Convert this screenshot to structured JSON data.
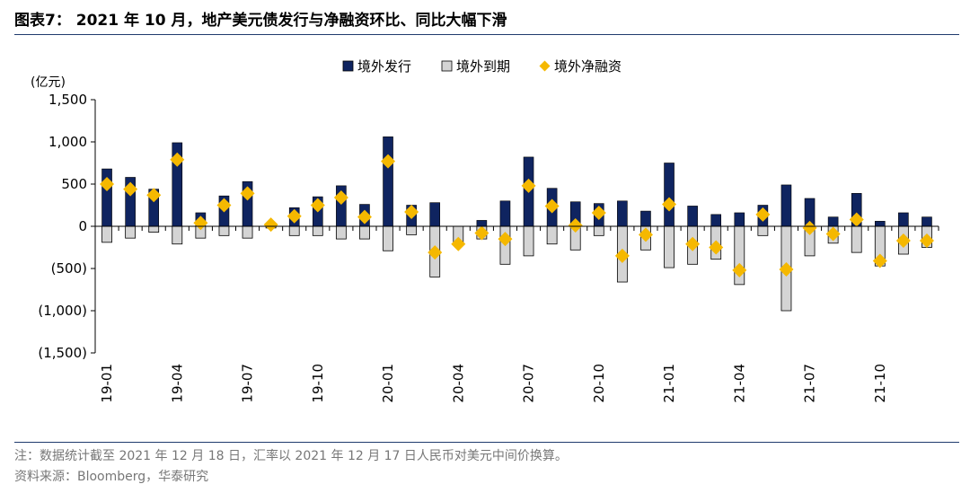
{
  "header": {
    "title": "图表7： 2021 年 10 月，地产美元债发行与净融资环比、同比大幅下滑"
  },
  "footer": {
    "note": "注：数据统计截至 2021 年 12 月 18 日，汇率以 2021 年 12 月 17 日人民币对美元中间价换算。",
    "source": "资料来源：Bloomberg，华泰研究"
  },
  "chart_data": {
    "type": "bar",
    "unit_label": "(亿元)",
    "ylim": [
      -1500,
      1500
    ],
    "y_ticks": [
      1500,
      1000,
      500,
      0,
      -500,
      -1000,
      -1500
    ],
    "y_tick_labels": [
      "1,500",
      "1,000",
      "500",
      "0",
      "(500)",
      "(1,000)",
      "(1,500)"
    ],
    "x_tick_labels": [
      "19-01",
      "19-04",
      "19-07",
      "19-10",
      "20-01",
      "20-04",
      "20-07",
      "20-10",
      "21-01",
      "21-04",
      "21-07",
      "21-10"
    ],
    "legend_position": "top-center",
    "colors": {
      "issue": "#0f2460",
      "maturity": "#d4d4d4",
      "net": "#f5b800"
    },
    "categories": [
      "19-01",
      "19-02",
      "19-03",
      "19-04",
      "19-05",
      "19-06",
      "19-07",
      "19-08",
      "19-09",
      "19-10",
      "19-11",
      "19-12",
      "20-01",
      "20-02",
      "20-03",
      "20-04",
      "20-05",
      "20-06",
      "20-07",
      "20-08",
      "20-09",
      "20-10",
      "20-11",
      "20-12",
      "21-01",
      "21-02",
      "21-03",
      "21-04",
      "21-05",
      "21-06",
      "21-07",
      "21-08",
      "21-09",
      "21-10",
      "21-11",
      "21-12"
    ],
    "series": [
      {
        "name": "境外发行",
        "kind": "bar",
        "values": [
          680,
          580,
          440,
          990,
          160,
          360,
          530,
          20,
          220,
          350,
          480,
          260,
          1060,
          250,
          280,
          0,
          70,
          300,
          820,
          450,
          290,
          270,
          300,
          180,
          750,
          240,
          140,
          160,
          250,
          490,
          330,
          110,
          390,
          60,
          160,
          110
        ]
      },
      {
        "name": "境外到期",
        "kind": "bar",
        "values": [
          -190,
          -140,
          -70,
          -210,
          -140,
          -110,
          -140,
          -20,
          -110,
          -110,
          -150,
          -150,
          -290,
          -100,
          -600,
          -210,
          -150,
          -450,
          -350,
          -210,
          -280,
          -110,
          -660,
          -280,
          -490,
          -450,
          -390,
          -690,
          -110,
          -1000,
          -350,
          -200,
          -310,
          -470,
          -330,
          -250
        ]
      },
      {
        "name": "境外净融资",
        "kind": "marker",
        "values": [
          500,
          440,
          370,
          790,
          40,
          250,
          390,
          20,
          120,
          250,
          340,
          110,
          770,
          170,
          -310,
          -210,
          -80,
          -150,
          480,
          240,
          10,
          160,
          -350,
          -100,
          260,
          -210,
          -250,
          -520,
          140,
          -510,
          -20,
          -90,
          80,
          -410,
          -170,
          -170
        ]
      }
    ]
  }
}
